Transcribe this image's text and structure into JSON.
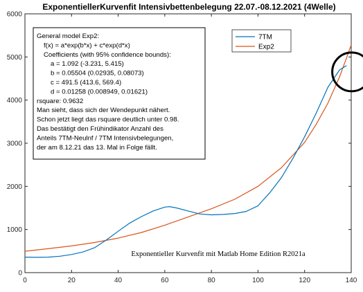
{
  "chart_data": {
    "type": "line",
    "title": "ExponentiellerKurvenfit Intensivbettenbelegung 22.07.-08.12.2021 (4Welle)",
    "xlabel": "",
    "ylabel": "",
    "xlim": [
      0,
      140
    ],
    "ylim": [
      0,
      6000
    ],
    "xticks": [
      0,
      20,
      40,
      60,
      80,
      100,
      120,
      140
    ],
    "yticks": [
      0,
      1000,
      2000,
      3000,
      4000,
      5000,
      6000
    ],
    "grid": false,
    "legend_position": "top-right",
    "series": [
      {
        "name": "7TM",
        "color": "#0072BD",
        "x": [
          0,
          5,
          10,
          15,
          20,
          25,
          30,
          35,
          40,
          45,
          50,
          55,
          60,
          62,
          65,
          70,
          75,
          80,
          85,
          90,
          95,
          100,
          105,
          110,
          115,
          120,
          125,
          130,
          135,
          138
        ],
        "y": [
          360,
          355,
          360,
          380,
          420,
          480,
          580,
          760,
          960,
          1150,
          1300,
          1430,
          1520,
          1530,
          1500,
          1430,
          1360,
          1340,
          1350,
          1370,
          1420,
          1550,
          1850,
          2200,
          2650,
          3150,
          3700,
          4300,
          4700,
          4800
        ]
      },
      {
        "name": "Exp2",
        "color": "#D95319",
        "x": [
          0,
          10,
          20,
          30,
          40,
          50,
          60,
          70,
          80,
          90,
          100,
          110,
          120,
          125,
          130,
          135,
          138,
          140
        ],
        "y": [
          496,
          555,
          620,
          700,
          800,
          930,
          1100,
          1290,
          1480,
          1700,
          2000,
          2430,
          3020,
          3440,
          3930,
          4540,
          4980,
          5280
        ]
      }
    ],
    "annotation_box": {
      "lines": [
        "General model Exp2:",
        "f(x) = a*exp(b*x) + c*exp(d*x)",
        "Coefficients (with 95% confidence bounds):",
        "a =        1.092  (-3.231, 5.415)",
        "b =      0.05504  (0.02935, 0.08073)",
        "c =        491.5  (413.6, 569.4)",
        "d =      0.01258  (0.008949, 0.01621)",
        "rsquare: 0.9632",
        "Man sieht, dass sich der Wendepunkt nähert.",
        "Schon jetzt liegt das rsquare deutlich unter 0.98.",
        "Das bestätigt den Frühindikator Anzahl des",
        "Anteils 7TM-Neulnf / 7TM Intensivbelegungen,",
        "der am 8.12.21 das 13. Mal in Folge fällt."
      ]
    },
    "caption": "Exponentieller Kurvenfit mit Matlab Home Edition R2021a",
    "highlight_circle": {
      "x": 139,
      "y": 4750,
      "color": "#000000"
    }
  }
}
